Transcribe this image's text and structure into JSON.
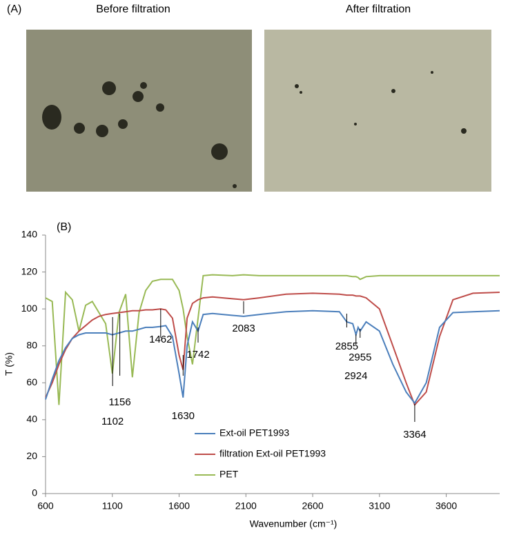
{
  "panel_a": {
    "label": "(A)",
    "captions": [
      "Before filtration",
      "After filtration"
    ]
  },
  "chart_data": {
    "type": "line",
    "title": "(B)",
    "x_label": "Wavenumber (cm⁻¹)",
    "y_label": "T (%)",
    "x": [
      600,
      650,
      700,
      750,
      800,
      850,
      900,
      950,
      1000,
      1050,
      1100,
      1150,
      1200,
      1250,
      1300,
      1350,
      1400,
      1462,
      1500,
      1550,
      1600,
      1630,
      1660,
      1700,
      1742,
      1780,
      1850,
      2000,
      2083,
      2200,
      2400,
      2600,
      2800,
      2855,
      2900,
      2924,
      2940,
      2955,
      3000,
      3100,
      3200,
      3300,
      3364,
      3450,
      3550,
      3650,
      3800,
      4000
    ],
    "series": [
      {
        "name": "Ext-oil PET1993",
        "color": "#4a7ebb",
        "values": [
          51,
          62,
          72,
          79,
          84,
          86,
          87,
          87,
          87,
          87,
          86,
          87,
          88,
          88,
          89,
          90,
          90,
          90.5,
          91,
          85,
          65,
          52,
          80,
          93,
          88,
          97,
          97.5,
          96.5,
          96,
          97,
          98.5,
          99,
          98.5,
          93,
          92,
          86,
          90,
          88,
          93,
          88,
          70,
          55,
          49,
          60,
          90,
          98,
          98.5,
          99
        ]
      },
      {
        "name": "filtration Ext-oil PET1993",
        "color": "#be4b48",
        "values": [
          52,
          60,
          70,
          78,
          84,
          88,
          91,
          94,
          96,
          97,
          97.5,
          98,
          98.5,
          99,
          99,
          99.5,
          99.5,
          100,
          99.5,
          95,
          75,
          67,
          95,
          103,
          105,
          106,
          106.5,
          105.5,
          105,
          106,
          108,
          108.5,
          108,
          107.5,
          107.5,
          107,
          107,
          107,
          106,
          100,
          80,
          60,
          48,
          55,
          85,
          105,
          108.5,
          109
        ]
      },
      {
        "name": "PET",
        "color": "#98b954",
        "values": [
          106,
          104,
          48,
          109,
          105,
          88,
          102,
          104,
          98,
          92,
          65,
          98,
          108,
          63,
          98,
          110,
          115,
          116,
          116,
          116,
          110,
          100,
          85,
          70,
          95,
          118,
          118.5,
          118,
          118.5,
          118,
          118,
          118,
          118,
          118,
          117.5,
          117.5,
          117,
          116,
          117.5,
          118,
          118,
          118,
          118,
          118,
          118,
          118,
          118,
          118
        ]
      }
    ],
    "xlim": [
      600,
      4000
    ],
    "ylim": [
      0,
      140
    ],
    "xticks": [
      600,
      1100,
      1600,
      2100,
      2600,
      3100,
      3600
    ],
    "yticks": [
      0,
      20,
      40,
      60,
      80,
      100,
      120,
      140
    ],
    "annotations": [
      "1102",
      "1156",
      "1462",
      "1630",
      "1742",
      "2083",
      "2855",
      "2924",
      "2955",
      "3364"
    ]
  }
}
